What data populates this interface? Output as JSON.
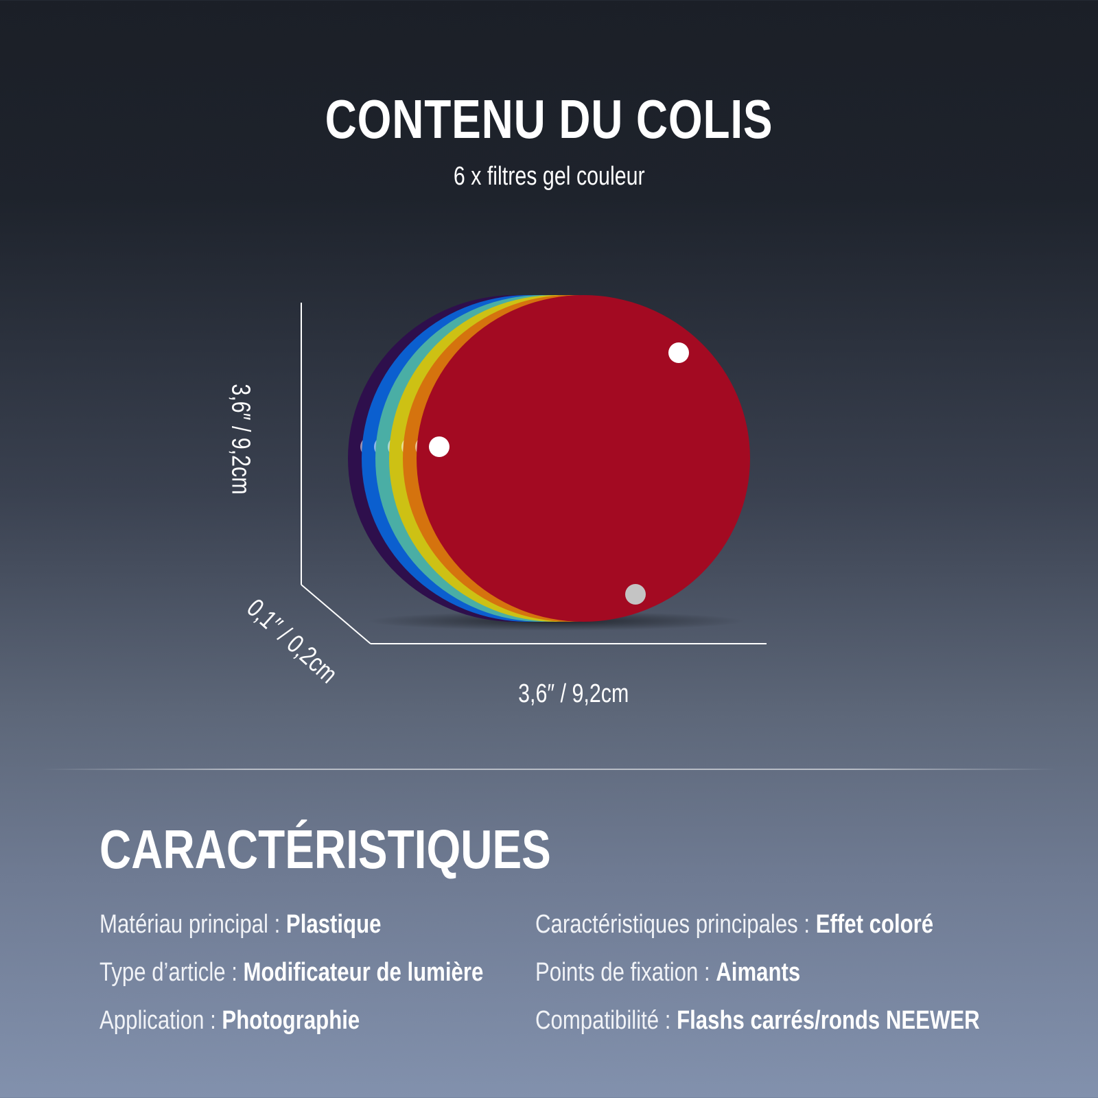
{
  "header": {
    "title": "CONTENU DU COLIS",
    "subtitle": "6 x filtres gel couleur"
  },
  "product": {
    "filter_colors": [
      "#2e0f4c",
      "#0b5fcf",
      "#4aaea5",
      "#cdc114",
      "#d5730e",
      "#a30a22"
    ],
    "dimensions": {
      "height": "3,6″ / 9,2cm",
      "thickness": "0,1″ / 0,2cm",
      "width": "3,6″ / 9,2cm"
    }
  },
  "features": {
    "title": "CARACTÉRISTIQUES",
    "items": [
      {
        "label": "Matériau principal : ",
        "value": "Plastique"
      },
      {
        "label": "Type d’article : ",
        "value": "Modificateur de lumière"
      },
      {
        "label": "Application : ",
        "value": "Photographie"
      },
      {
        "label": "Caractéristiques principales : ",
        "value": "Effet coloré"
      },
      {
        "label": "Points de fixation : ",
        "value": "Aimants"
      },
      {
        "label": "Compatibilité : ",
        "value": "Flashs carrés/ronds NEEWER"
      }
    ]
  }
}
